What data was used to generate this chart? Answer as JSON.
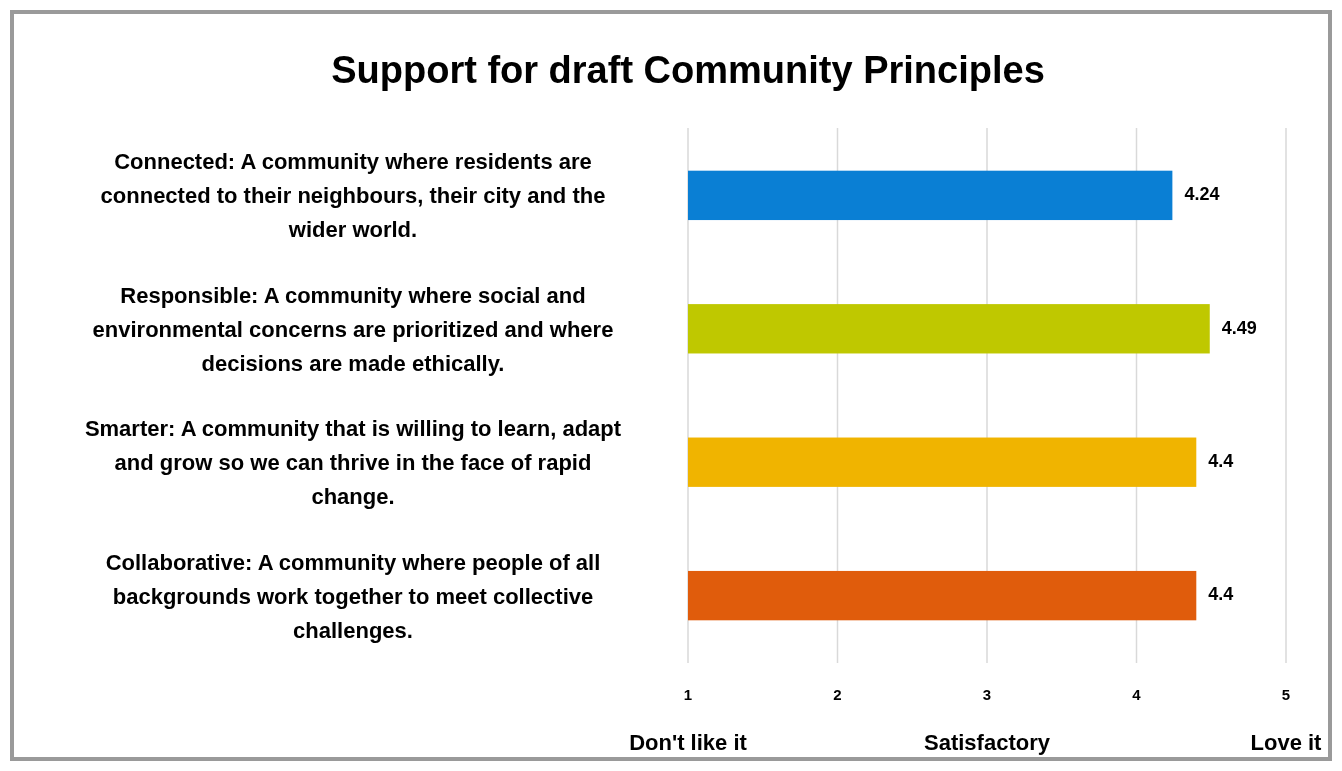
{
  "chart_data": {
    "type": "bar",
    "orientation": "horizontal",
    "title": "Support for draft Community Principles",
    "categories": [
      "Connected: A community where residents are connected to their neighbours, their city and the wider world.",
      "Responsible: A community where social and environmental concerns are prioritized and where decisions are made ethically.",
      "Smarter: A community that is willing to learn, adapt and grow so we can thrive in the face of rapid change.",
      "Collaborative: A community where people of all backgrounds work together to meet collective challenges."
    ],
    "values": [
      4.24,
      4.49,
      4.4,
      4.4
    ],
    "colors": [
      "#0a7fd4",
      "#bfc800",
      "#f0b400",
      "#e05c0c"
    ],
    "xlim": [
      1,
      5
    ],
    "xticks": [
      1,
      2,
      3,
      4,
      5
    ],
    "grid": "x",
    "data_labels": true,
    "annotations": [
      "Don't like it",
      "Satisfactory",
      "Love it"
    ]
  }
}
